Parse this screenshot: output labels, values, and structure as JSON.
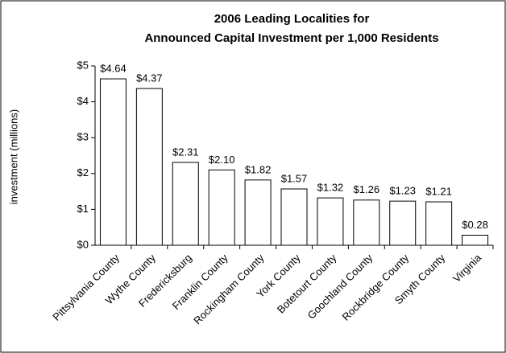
{
  "chart_data": {
    "type": "bar",
    "title": [
      "2006 Leading Localities for",
      "Announced Capital Investment per 1,000 Residents"
    ],
    "y_label": "investment (millions)",
    "categories": [
      "Pittsylvania County",
      "Wythe County",
      "Fredericksburg",
      "Franklin County",
      "Rockingham County",
      "York County",
      "Botetourt County",
      "Goochland County",
      "Rockbridge County",
      "Smyth County",
      "Virginia"
    ],
    "values": [
      4.64,
      4.37,
      2.31,
      2.1,
      1.82,
      1.57,
      1.32,
      1.26,
      1.23,
      1.21,
      0.28
    ],
    "value_labels": [
      "$4.64",
      "$4.37",
      "$2.31",
      "$2.10",
      "$1.82",
      "$1.57",
      "$1.32",
      "$1.26",
      "$1.23",
      "$1.21",
      "$0.28"
    ],
    "color": "#ffffff",
    "ylim": [
      0,
      5
    ],
    "yticks": [
      {
        "value": 0,
        "label": "$0"
      },
      {
        "value": 1,
        "label": "$1"
      },
      {
        "value": 2,
        "label": "$2"
      },
      {
        "value": 3,
        "label": "$3"
      },
      {
        "value": 4,
        "label": "$4"
      },
      {
        "value": 5,
        "label": "$5"
      }
    ],
    "grid": false
  }
}
